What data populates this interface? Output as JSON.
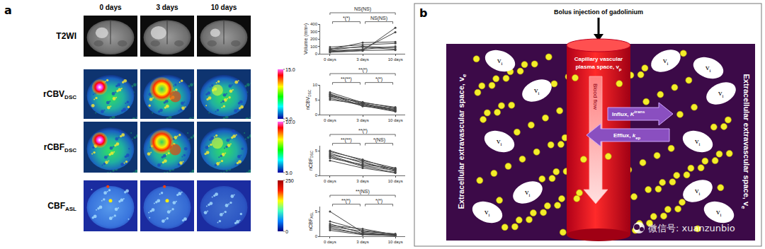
{
  "panel_a": {
    "label": "a",
    "columns": [
      "0 days",
      "3 days",
      "10 days"
    ],
    "rows": [
      {
        "label": "T2WI"
      },
      {
        "label": "rCBV",
        "subscript": "DSC",
        "colorbar": {
          "range": [
            5,
            15
          ],
          "ticks": [
            {
              "value": 15,
              "label": "15.0"
            },
            {
              "value": 5,
              "label": "5.0"
            }
          ]
        }
      },
      {
        "label": "rCBF",
        "subscript": "DSC",
        "colorbar": {
          "range": [
            5,
            10
          ],
          "ticks": [
            {
              "value": 10,
              "label": "10.0"
            },
            {
              "value": 5,
              "label": "5.0"
            }
          ]
        }
      },
      {
        "label": "CBF",
        "subscript": "ASL",
        "colorbar": {
          "range": [
            0,
            250
          ],
          "ticks": [
            250,
            0
          ]
        }
      }
    ]
  },
  "chart_data": [
    {
      "type": "line",
      "ylabel": "Volume (mm³)",
      "categories": [
        "0 days",
        "3 days",
        "10 days"
      ],
      "color": "#444444",
      "marker": "circle",
      "grid": false,
      "ylim": [
        0,
        400
      ],
      "yticks": [
        0,
        100,
        200,
        300,
        400
      ],
      "series": [
        {
          "values": [
            20,
            40,
            350
          ]
        },
        {
          "values": [
            40,
            60,
            290
          ]
        },
        {
          "values": [
            60,
            150,
            160
          ]
        },
        {
          "values": [
            30,
            60,
            100
          ]
        },
        {
          "values": [
            50,
            100,
            80
          ]
        },
        {
          "values": [
            70,
            90,
            60
          ]
        },
        {
          "values": [
            25,
            45,
            50
          ]
        },
        {
          "values": [
            90,
            120,
            140
          ]
        }
      ],
      "annotations": [
        {
          "text": "NS(NS)",
          "from": "0 days",
          "to": "10 days"
        },
        {
          "text": "*(*)",
          "from": "0 days",
          "to": "3 days"
        },
        {
          "text": "NS(NS)",
          "from": "3 days",
          "to": "10 days"
        }
      ]
    },
    {
      "type": "line",
      "ylabel": "nCBV",
      "ylabel_sub": "DSC",
      "categories": [
        "0 days",
        "3 days",
        "10 days"
      ],
      "color": "#444444",
      "marker": "circle",
      "grid": false,
      "ylim": [
        0,
        10
      ],
      "yticks": [
        0,
        5,
        10
      ],
      "series": [
        {
          "values": [
            7.5,
            4,
            2.5
          ]
        },
        {
          "values": [
            7,
            3.5,
            2
          ]
        },
        {
          "values": [
            6.5,
            3.8,
            1.5
          ]
        },
        {
          "values": [
            6,
            3.2,
            1.2
          ]
        },
        {
          "values": [
            5.5,
            3,
            1
          ]
        },
        {
          "values": [
            6.8,
            2.8,
            1.8
          ]
        },
        {
          "values": [
            5,
            3.5,
            1.4
          ]
        },
        {
          "values": [
            6.2,
            4.2,
            2.2
          ]
        }
      ],
      "annotations": [
        {
          "text": "**(*)",
          "from": "0 days",
          "to": "10 days"
        },
        {
          "text": "**(**)",
          "from": "0 days",
          "to": "3 days"
        },
        {
          "text": "*(*)",
          "from": "3 days",
          "to": "10 days"
        }
      ]
    },
    {
      "type": "line",
      "ylabel": "nCBF",
      "ylabel_sub": "DSC",
      "categories": [
        "0 days",
        "3 days",
        "10 days"
      ],
      "color": "#444444",
      "marker": "circle",
      "grid": false,
      "ylim": [
        0,
        6
      ],
      "yticks": [
        0,
        5
      ],
      "series": [
        {
          "values": [
            5,
            3,
            1.5
          ]
        },
        {
          "values": [
            4.5,
            2.5,
            1.2
          ]
        },
        {
          "values": [
            4.2,
            2.8,
            0.8
          ]
        },
        {
          "values": [
            4,
            2,
            1
          ]
        },
        {
          "values": [
            3.8,
            1.8,
            0.6
          ]
        },
        {
          "values": [
            3.5,
            2.2,
            1.4
          ]
        },
        {
          "values": [
            3,
            1.5,
            0.5
          ]
        },
        {
          "values": [
            4.8,
            3.2,
            1.1
          ]
        }
      ],
      "annotations": [
        {
          "text": "**(*)",
          "from": "0 days",
          "to": "10 days"
        },
        {
          "text": "**(**)",
          "from": "0 days",
          "to": "3 days"
        },
        {
          "text": "*(NS)",
          "from": "3 days",
          "to": "10 days"
        }
      ]
    },
    {
      "type": "line",
      "ylabel": "nCBF",
      "ylabel_sub": "ASL",
      "categories": [
        "0 days",
        "3 days",
        "10 days"
      ],
      "color": "#444444",
      "marker": "circle",
      "grid": false,
      "ylim": [
        0,
        6
      ],
      "yticks": [
        0,
        5
      ],
      "series": [
        {
          "values": [
            5,
            0.8,
            0.3
          ]
        },
        {
          "values": [
            3,
            1.2,
            0.4
          ]
        },
        {
          "values": [
            2.5,
            0.6,
            0.2
          ]
        },
        {
          "values": [
            2,
            1,
            0.5
          ]
        },
        {
          "values": [
            1.8,
            0.4,
            0.1
          ]
        },
        {
          "values": [
            1.5,
            0.5,
            0.2
          ]
        },
        {
          "values": [
            1.2,
            0.3,
            0.15
          ]
        },
        {
          "values": [
            2.2,
            1.5,
            0.3
          ]
        }
      ],
      "annotations": [
        {
          "text": "**(NS)",
          "from": "0 days",
          "to": "10 days"
        },
        {
          "text": "**(*)",
          "from": "0 days",
          "to": "3 days"
        },
        {
          "text": "*(*)",
          "from": "3 days",
          "to": "10 days"
        }
      ]
    }
  ],
  "panel_b": {
    "label": "b",
    "injection": "Bolus injection of gadolinium",
    "vessel": {
      "text": "Capillary vascular plasma space,",
      "symbol": "v",
      "subscript": "p"
    },
    "flow": "Blood flow",
    "influx": {
      "text": "Influx,",
      "symbol": "K",
      "superscript": "trans"
    },
    "efflux": {
      "text": "Efflux,",
      "symbol": "k",
      "subscript": "ep"
    },
    "space": {
      "text": "Extracellular extravascular space,",
      "symbol": "v",
      "subscript": "e"
    },
    "cell": {
      "symbol": "v",
      "subscript": "i"
    }
  },
  "watermark": "微信号: xuanzunbio"
}
